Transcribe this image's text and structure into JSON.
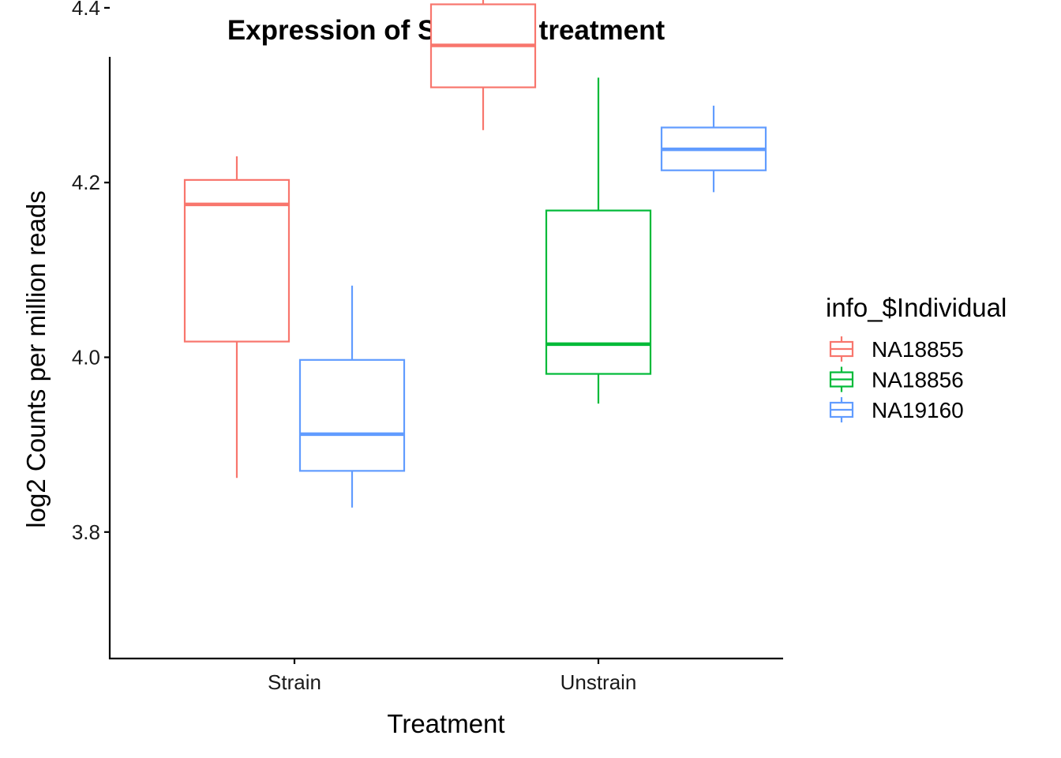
{
  "chart_data": {
    "type": "boxplot",
    "title": "Expression of SOX6 by treatment",
    "xlabel": "Treatment",
    "ylabel": "log2 Counts per million reads",
    "categories": [
      "Strain",
      "Unstrain"
    ],
    "ylim": [
      3.8,
      4.48
    ],
    "yticks": [
      3.8,
      4.0,
      4.2,
      4.4
    ],
    "ytick_labels": [
      "3.8",
      "4.0",
      "4.2",
      "4.4"
    ],
    "legend": {
      "title": "info_$Individual",
      "position": "right"
    },
    "series": [
      {
        "name": "NA18855",
        "color": "#F8766D",
        "boxes": [
          {
            "category": "Strain",
            "min": 3.862,
            "q1": 4.018,
            "median": 4.175,
            "q3": 4.203,
            "max": 4.23
          },
          {
            "category": "Unstrain",
            "min": 4.26,
            "q1": 4.309,
            "median": 4.357,
            "q3": 4.404,
            "max": 4.452
          }
        ]
      },
      {
        "name": "NA18856",
        "color": "#00BA38",
        "boxes": [
          {
            "category": "Unstrain",
            "min": 3.947,
            "q1": 3.981,
            "median": 4.015,
            "q3": 4.168,
            "max": 4.32
          }
        ]
      },
      {
        "name": "NA19160",
        "color": "#619CFF",
        "boxes": [
          {
            "category": "Strain",
            "min": 3.828,
            "q1": 3.87,
            "median": 3.912,
            "q3": 3.997,
            "max": 4.082
          },
          {
            "category": "Unstrain",
            "min": 4.189,
            "q1": 4.214,
            "median": 4.238,
            "q3": 4.263,
            "max": 4.288
          }
        ]
      }
    ]
  }
}
